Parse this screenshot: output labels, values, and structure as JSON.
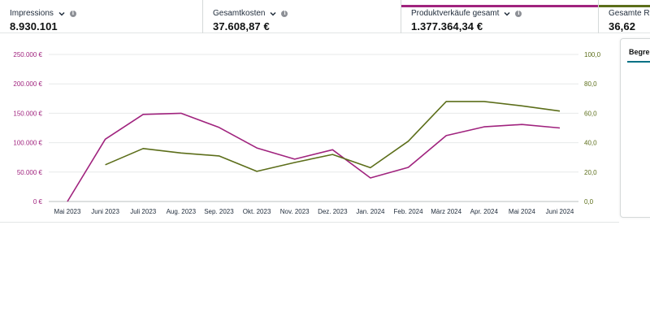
{
  "metrics": [
    {
      "label": "Impressions",
      "value": "8.930.101",
      "accent": ""
    },
    {
      "label": "Gesamtkosten",
      "value": "37.608,87 €",
      "accent": ""
    },
    {
      "label": "Produktverkäufe gesamt",
      "value": "1.377.364,34 €",
      "accent": "#a0237e"
    },
    {
      "label": "Gesamte ROAS",
      "value": "36,62",
      "accent": "#5c6e1a"
    }
  ],
  "side_panel": {
    "tab_label": "Begren"
  },
  "chart_data": {
    "type": "line",
    "categories": [
      "Mai 2023",
      "Juni 2023",
      "Juli 2023",
      "Aug. 2023",
      "Sep. 2023",
      "Okt. 2023",
      "Nov. 2023",
      "Dez. 2023",
      "Jan. 2024",
      "Feb. 2024",
      "März 2024",
      "Apr. 2024",
      "Mai 2024",
      "Juni 2024"
    ],
    "y_left": {
      "ticks": [
        "0 €",
        "50.000 €",
        "100.000 €",
        "150.000 €",
        "200.000 €",
        "250.000 €"
      ],
      "range": [
        0,
        250000
      ],
      "color": "#a0237e"
    },
    "y_right": {
      "ticks": [
        "0,0",
        "20,0",
        "40,0",
        "60,0",
        "80,0",
        "100,0"
      ],
      "range": [
        0,
        100
      ],
      "color": "#5c6e1a"
    },
    "grid": true,
    "series": [
      {
        "axis": "left",
        "color": "#a0237e",
        "values": [
          0,
          106000,
          148000,
          150000,
          126000,
          91000,
          72000,
          88000,
          40000,
          58000,
          112000,
          127000,
          131000,
          125000
        ]
      },
      {
        "axis": "right",
        "color": "#5c6e1a",
        "values": [
          null,
          25,
          36,
          33,
          31,
          20.5,
          26.5,
          32,
          23,
          41,
          68,
          68,
          65,
          61.5
        ]
      }
    ]
  }
}
